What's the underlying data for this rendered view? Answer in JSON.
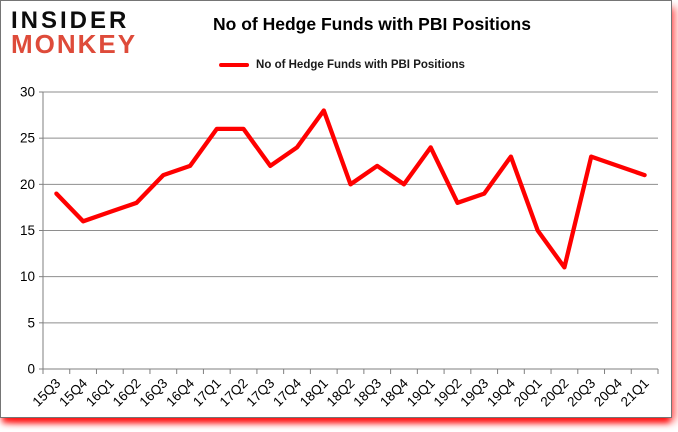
{
  "logo": {
    "line1": "INSIDER",
    "line2": "MONKEY",
    "line1_color": "#0d0d0d",
    "line2_color": "#de4b3a"
  },
  "title": "No of Hedge Funds with PBI Positions",
  "legend": {
    "label": "No of Hedge Funds with PBI Positions",
    "marker_color": "#ff0000"
  },
  "chart_data": {
    "type": "line",
    "title": "No of Hedge Funds with PBI Positions",
    "categories": [
      "15Q3",
      "15Q4",
      "16Q1",
      "16Q2",
      "16Q3",
      "16Q4",
      "17Q1",
      "17Q2",
      "17Q3",
      "17Q4",
      "18Q1",
      "18Q2",
      "18Q3",
      "18Q4",
      "19Q1",
      "19Q2",
      "19Q3",
      "19Q4",
      "20Q1",
      "20Q2",
      "20Q3",
      "20Q4",
      "21Q1"
    ],
    "series": [
      {
        "name": "No of Hedge Funds with PBI Positions",
        "color": "#ff0000",
        "values": [
          19,
          16,
          17,
          18,
          21,
          22,
          26,
          26,
          22,
          24,
          28,
          20,
          22,
          20,
          24,
          18,
          19,
          23,
          15,
          11,
          23,
          22,
          21
        ]
      }
    ],
    "xlabel": "",
    "ylabel": "",
    "ylim": [
      0,
      30
    ],
    "yticks": [
      0,
      5,
      10,
      15,
      20,
      25,
      30
    ],
    "grid": true,
    "legend_position": "top-center",
    "gridline_color": "#8e8e8e",
    "axis_color": "#7f7f7f",
    "tick_label_color": "#000000"
  }
}
